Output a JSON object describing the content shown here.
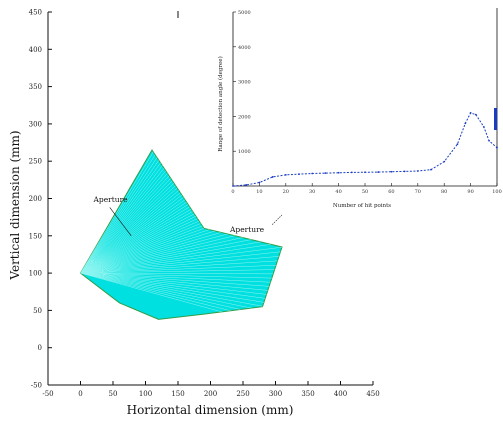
{
  "chart_data": [
    {
      "type": "area",
      "xlabel": "Horizontal dimension (mm)",
      "ylabel": "Vertical dimension (mm)",
      "xlim": [
        -50,
        450
      ],
      "ylim": [
        -50,
        450
      ],
      "xticks": [
        -50,
        0,
        50,
        100,
        150,
        200,
        250,
        300,
        350,
        400,
        450
      ],
      "yticks": [
        -50,
        0,
        50,
        100,
        150,
        200,
        250,
        300,
        350,
        400,
        450
      ],
      "xtick_labels": [
        "-50",
        "0",
        "50",
        "100",
        "150",
        "200",
        "250",
        "300",
        "350",
        "400",
        "450"
      ],
      "ytick_labels": [
        "-50",
        "0",
        "50",
        "100",
        "150",
        "200",
        "250",
        "300",
        "350",
        "400",
        "450"
      ],
      "fill_color": "#00e0e0",
      "edge_color": "#2e9e4a",
      "region_outline": [
        {
          "x": 0,
          "y": 100
        },
        {
          "x": 110,
          "y": 265
        },
        {
          "x": 190,
          "y": 160
        },
        {
          "x": 310,
          "y": 135
        },
        {
          "x": 280,
          "y": 55
        },
        {
          "x": 190,
          "y": 45
        },
        {
          "x": 120,
          "y": 38
        },
        {
          "x": 60,
          "y": 60
        }
      ],
      "annotations": [
        {
          "text": "Aperture",
          "x": 20,
          "y": 195
        },
        {
          "text": "Aperture",
          "x": 230,
          "y": 155
        }
      ]
    },
    {
      "type": "line",
      "xlabel": "Number of hit points",
      "ylabel": "Range of detection angle (degree)",
      "xlim": [
        0,
        100
      ],
      "ylim": [
        0,
        5000
      ],
      "xticks": [
        0,
        10,
        20,
        30,
        40,
        50,
        60,
        70,
        80,
        90,
        100
      ],
      "xtick_labels": [
        "0",
        "10",
        "20",
        "30",
        "40",
        "50",
        "60",
        "70",
        "80",
        "90",
        "100"
      ],
      "yticks": [
        1000,
        2000,
        3000,
        4000,
        5000
      ],
      "ytick_labels": [
        "1000",
        "2000",
        "3000",
        "4000",
        "5000"
      ],
      "line_color": "#1a3cc4",
      "series": [
        {
          "x": [
            0,
            5,
            10,
            15,
            20,
            25,
            30,
            35,
            40,
            45,
            50,
            55,
            60,
            65,
            70,
            75,
            80,
            85,
            88,
            90,
            92,
            95,
            97,
            100
          ],
          "y": [
            0,
            30,
            100,
            260,
            320,
            340,
            360,
            370,
            380,
            390,
            395,
            400,
            410,
            420,
            430,
            470,
            700,
            1200,
            1800,
            2100,
            2050,
            1700,
            1300,
            1100
          ]
        }
      ]
    }
  ]
}
